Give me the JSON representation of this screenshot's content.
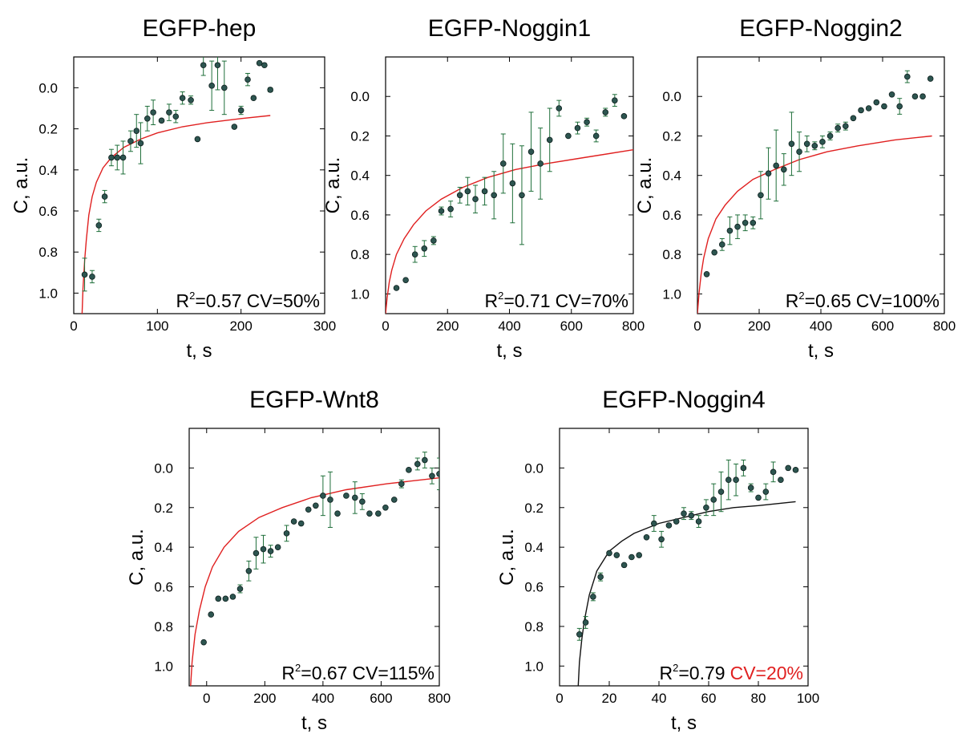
{
  "colors": {
    "point": "#2d5550",
    "point_stroke": "#0d1f1d",
    "errorbar": "#1f6f3a",
    "fit_red": "#e02020",
    "fit_black": "#111111",
    "highlight": "#e02020",
    "axis": "#000000"
  },
  "chart_data": [
    {
      "type": "scatter",
      "title": "EGFP-hep",
      "xlabel": "t, s",
      "ylabel": "C, a.u.",
      "xlim": [
        0,
        300
      ],
      "ylim": [
        -0.15,
        1.1
      ],
      "y_inverted": true,
      "xticks": [
        0,
        100,
        200,
        300
      ],
      "xtick_labels": [
        "0",
        "100",
        "200",
        "300"
      ],
      "yticks": [
        0.0,
        0.2,
        0.4,
        0.6,
        0.8,
        1.0
      ],
      "ytick_labels": [
        "0.0",
        "0.2",
        "0.4",
        "0.6",
        "0.8",
        "1.0"
      ],
      "annotation": {
        "r2_prefix": "R",
        "r2_sup": "2",
        "r2_value": "=0.57",
        "cv": "CV=50%",
        "cv_highlight": false
      },
      "fit": {
        "color": "red",
        "x": [
          10,
          11,
          13,
          15,
          18,
          22,
          27,
          35,
          45,
          60,
          80,
          100,
          130,
          160,
          200,
          235
        ],
        "y": [
          1.1,
          0.98,
          0.84,
          0.74,
          0.62,
          0.53,
          0.46,
          0.39,
          0.34,
          0.29,
          0.25,
          0.22,
          0.19,
          0.17,
          0.15,
          0.135
        ]
      },
      "series": [
        {
          "x": [
            13,
            22,
            30,
            37,
            45,
            52,
            59,
            68,
            75,
            80,
            88,
            95,
            105,
            114,
            122,
            130,
            140,
            148,
            155,
            165,
            172,
            180,
            192,
            200,
            208,
            215,
            222,
            228,
            235
          ],
          "y": [
            0.91,
            0.92,
            0.67,
            0.53,
            0.34,
            0.34,
            0.34,
            0.26,
            0.21,
            0.27,
            0.15,
            0.12,
            0.16,
            0.12,
            0.14,
            0.05,
            0.06,
            0.25,
            -0.11,
            -0.01,
            -0.11,
            0.0,
            0.19,
            0.11,
            -0.04,
            0.05,
            -0.12,
            -0.11,
            0.01
          ],
          "err": [
            0.08,
            0.03,
            0.03,
            0.03,
            0.04,
            0.06,
            0.08,
            0.05,
            0.08,
            0.1,
            0.06,
            0.06,
            0.0,
            0.04,
            0.03,
            0.03,
            0.02,
            0.0,
            0.05,
            0.12,
            0.12,
            0.13,
            0.0,
            0.02,
            0.03,
            0.0,
            0.0,
            0.0,
            0.01
          ]
        }
      ]
    },
    {
      "type": "scatter",
      "title": "EGFP-Noggin1",
      "xlabel": "t, s",
      "ylabel": "C, a.u.",
      "xlim": [
        0,
        800
      ],
      "ylim": [
        -0.2,
        1.1
      ],
      "y_inverted": true,
      "xticks": [
        0,
        200,
        400,
        600,
        800
      ],
      "xtick_labels": [
        "0",
        "200",
        "400",
        "600",
        "800"
      ],
      "yticks": [
        0.0,
        0.2,
        0.4,
        0.6,
        0.8,
        1.0
      ],
      "ytick_labels": [
        "0.0",
        "0.2",
        "0.4",
        "0.6",
        "0.8",
        "1.0"
      ],
      "annotation": {
        "r2_prefix": "R",
        "r2_sup": "2",
        "r2_value": "=0.71",
        "cv": "CV=70%",
        "cv_highlight": false
      },
      "fit": {
        "color": "red",
        "x": [
          0,
          5,
          12,
          20,
          35,
          60,
          90,
          130,
          180,
          250,
          330,
          420,
          520,
          640,
          800
        ],
        "y": [
          1.1,
          1.02,
          0.94,
          0.88,
          0.8,
          0.72,
          0.65,
          0.58,
          0.52,
          0.46,
          0.41,
          0.37,
          0.34,
          0.31,
          0.27
        ]
      },
      "series": [
        {
          "x": [
            35,
            65,
            95,
            125,
            155,
            180,
            210,
            240,
            265,
            290,
            320,
            350,
            380,
            410,
            440,
            470,
            500,
            530,
            560,
            590,
            620,
            650,
            680,
            710,
            740,
            770
          ],
          "y": [
            0.97,
            0.93,
            0.8,
            0.77,
            0.73,
            0.58,
            0.57,
            0.5,
            0.48,
            0.52,
            0.48,
            0.5,
            0.34,
            0.44,
            0.5,
            0.28,
            0.34,
            0.22,
            0.06,
            0.2,
            0.16,
            0.13,
            0.2,
            0.08,
            0.02,
            0.1
          ],
          "err": [
            0.0,
            0.0,
            0.04,
            0.04,
            0.02,
            0.02,
            0.04,
            0.04,
            0.07,
            0.07,
            0.07,
            0.12,
            0.15,
            0.2,
            0.25,
            0.2,
            0.18,
            0.16,
            0.04,
            0.0,
            0.03,
            0.02,
            0.03,
            0.02,
            0.03,
            0.0
          ]
        }
      ]
    },
    {
      "type": "scatter",
      "title": "EGFP-Noggin2",
      "xlabel": "t, s",
      "ylabel": "C, a.u.",
      "xlim": [
        0,
        800
      ],
      "ylim": [
        -0.2,
        1.1
      ],
      "y_inverted": true,
      "xticks": [
        0,
        200,
        400,
        600,
        800
      ],
      "xtick_labels": [
        "0",
        "200",
        "400",
        "600",
        "800"
      ],
      "yticks": [
        0.0,
        0.2,
        0.4,
        0.6,
        0.8,
        1.0
      ],
      "ytick_labels": [
        "0.0",
        "0.2",
        "0.4",
        "0.6",
        "0.8",
        "1.0"
      ],
      "annotation": {
        "r2_prefix": "R",
        "r2_sup": "2",
        "r2_value": "=0.65",
        "cv": "CV=100%",
        "cv_highlight": false
      },
      "fit": {
        "color": "red",
        "x": [
          0,
          5,
          12,
          20,
          35,
          60,
          90,
          130,
          180,
          250,
          330,
          420,
          520,
          640,
          760
        ],
        "y": [
          1.1,
          1.0,
          0.9,
          0.82,
          0.72,
          0.62,
          0.55,
          0.48,
          0.42,
          0.37,
          0.32,
          0.28,
          0.25,
          0.22,
          0.2
        ]
      },
      "series": [
        {
          "x": [
            30,
            55,
            80,
            105,
            130,
            155,
            180,
            205,
            230,
            255,
            280,
            305,
            330,
            355,
            380,
            405,
            430,
            455,
            480,
            505,
            530,
            555,
            580,
            605,
            630,
            655,
            680,
            705,
            730,
            755
          ],
          "y": [
            0.9,
            0.79,
            0.75,
            0.68,
            0.66,
            0.64,
            0.64,
            0.5,
            0.39,
            0.35,
            0.37,
            0.24,
            0.28,
            0.24,
            0.25,
            0.23,
            0.2,
            0.16,
            0.15,
            0.11,
            0.07,
            0.06,
            0.03,
            0.05,
            -0.01,
            0.05,
            -0.1,
            0.0,
            0.0,
            -0.09
          ],
          "err": [
            0.0,
            0.0,
            0.03,
            0.07,
            0.06,
            0.04,
            0.03,
            0.12,
            0.13,
            0.18,
            0.08,
            0.16,
            0.1,
            0.04,
            0.02,
            0.03,
            0.02,
            0.02,
            0.02,
            0.0,
            0.0,
            0.0,
            0.0,
            0.0,
            0.0,
            0.04,
            0.03,
            0.0,
            0.0,
            0.0
          ]
        }
      ]
    },
    {
      "type": "scatter",
      "title": "EGFP-Wnt8",
      "xlabel": "t, s",
      "ylabel": "C, a.u.",
      "xlim": [
        -60,
        800
      ],
      "ylim": [
        -0.2,
        1.1
      ],
      "y_inverted": true,
      "xticks": [
        0,
        200,
        400,
        600,
        800
      ],
      "xtick_labels": [
        "0",
        "200",
        "400",
        "600",
        "800"
      ],
      "yticks": [
        0.0,
        0.2,
        0.4,
        0.6,
        0.8,
        1.0
      ],
      "ytick_labels": [
        "0.0",
        "0.2",
        "0.4",
        "0.6",
        "0.8",
        "1.0"
      ],
      "annotation": {
        "r2_prefix": "R",
        "r2_sup": "2",
        "r2_value": "=0.67",
        "cv": "CV=115%",
        "cv_highlight": false
      },
      "fit": {
        "color": "red",
        "x": [
          -55,
          -50,
          -40,
          -25,
          -5,
          20,
          60,
          110,
          180,
          260,
          360,
          480,
          620,
          800
        ],
        "y": [
          1.1,
          0.98,
          0.84,
          0.72,
          0.6,
          0.5,
          0.4,
          0.32,
          0.25,
          0.2,
          0.15,
          0.11,
          0.08,
          0.05
        ]
      },
      "series": [
        {
          "x": [
            -10,
            15,
            40,
            65,
            90,
            115,
            145,
            170,
            195,
            220,
            245,
            275,
            300,
            325,
            350,
            375,
            400,
            425,
            450,
            480,
            510,
            535,
            560,
            590,
            615,
            645,
            670,
            695,
            725,
            750,
            775,
            800
          ],
          "y": [
            0.88,
            0.74,
            0.66,
            0.66,
            0.65,
            0.61,
            0.52,
            0.43,
            0.41,
            0.42,
            0.4,
            0.33,
            0.27,
            0.28,
            0.21,
            0.19,
            0.14,
            0.16,
            0.23,
            0.14,
            0.15,
            0.17,
            0.23,
            0.23,
            0.2,
            0.16,
            0.08,
            0.01,
            -0.02,
            -0.04,
            0.04,
            0.03
          ],
          "err": [
            0.0,
            0.0,
            0.0,
            0.0,
            0.0,
            0.02,
            0.05,
            0.08,
            0.07,
            0.03,
            0.0,
            0.04,
            0.0,
            0.0,
            0.0,
            0.0,
            0.1,
            0.14,
            0.0,
            0.0,
            0.08,
            0.04,
            0.0,
            0.0,
            0.0,
            0.0,
            0.02,
            0.0,
            0.03,
            0.04,
            0.04,
            0.08
          ]
        }
      ]
    },
    {
      "type": "scatter",
      "title": "EGFP-Noggin4",
      "xlabel": "t, s",
      "ylabel": "C, a.u.",
      "xlim": [
        0,
        100
      ],
      "ylim": [
        -0.2,
        1.1
      ],
      "y_inverted": true,
      "xticks": [
        0,
        20,
        40,
        60,
        80,
        100
      ],
      "xtick_labels": [
        "0",
        "20",
        "40",
        "60",
        "80",
        "100"
      ],
      "yticks": [
        0.0,
        0.2,
        0.4,
        0.6,
        0.8,
        1.0
      ],
      "ytick_labels": [
        "0.0",
        "0.2",
        "0.4",
        "0.6",
        "0.8",
        "1.0"
      ],
      "annotation": {
        "r2_prefix": "R",
        "r2_sup": "2",
        "r2_value": "=0.79",
        "cv": "CV=20%",
        "cv_highlight": true
      },
      "fit": {
        "color": "black",
        "x": [
          7.5,
          8,
          9,
          10,
          12,
          15,
          20,
          25,
          30,
          40,
          50,
          60,
          70,
          80,
          95
        ],
        "y": [
          1.1,
          0.98,
          0.86,
          0.77,
          0.64,
          0.52,
          0.42,
          0.37,
          0.33,
          0.28,
          0.25,
          0.22,
          0.2,
          0.19,
          0.17
        ]
      },
      "series": [
        {
          "x": [
            8,
            10.5,
            13.5,
            16.5,
            20,
            23,
            26,
            29,
            32,
            35,
            38,
            41,
            44,
            47,
            50,
            53,
            56,
            59,
            62,
            65,
            68,
            71,
            74,
            77,
            80,
            83,
            86,
            89,
            92,
            95
          ],
          "y": [
            0.84,
            0.78,
            0.65,
            0.55,
            0.43,
            0.44,
            0.49,
            0.45,
            0.44,
            0.35,
            0.28,
            0.36,
            0.29,
            0.27,
            0.23,
            0.24,
            0.27,
            0.2,
            0.16,
            0.12,
            0.06,
            0.06,
            0.0,
            0.1,
            0.15,
            0.12,
            0.02,
            0.06,
            0.0,
            0.01
          ],
          "err": [
            0.03,
            0.03,
            0.02,
            0.02,
            0.0,
            0.0,
            0.0,
            0.0,
            0.0,
            0.0,
            0.04,
            0.04,
            0.0,
            0.0,
            0.03,
            0.02,
            0.03,
            0.04,
            0.08,
            0.1,
            0.1,
            0.08,
            0.04,
            0.02,
            0.0,
            0.04,
            0.05,
            0.0,
            0.0,
            0.0
          ]
        }
      ]
    }
  ]
}
